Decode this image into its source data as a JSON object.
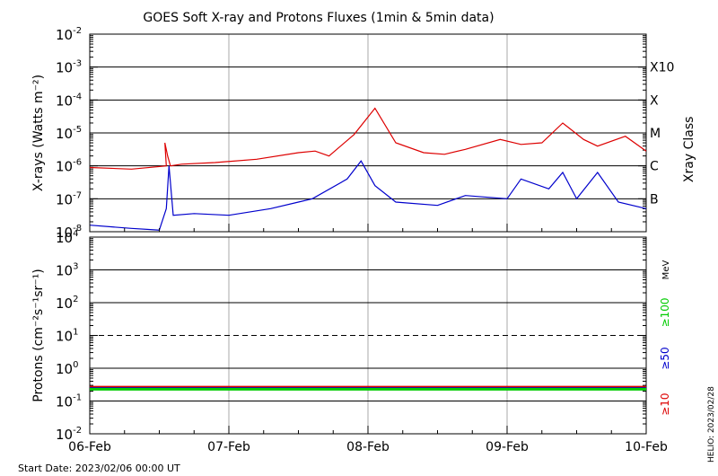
{
  "title": "GOES Soft X-ray and Protons Fluxes   (1min & 5min data)",
  "start_date": "Start Date: 2023/02/06 00:00 UT",
  "helio_stamp": "HELIO: 2023/02/28",
  "chart_data": [
    {
      "type": "line",
      "panel": "xray",
      "ylabel": "X-rays (Watts m⁻²)",
      "y_scale": "log",
      "ylim_exponents": [
        -8,
        -2
      ],
      "y_tick_labels": [
        {
          "base": "10",
          "exp": "-8"
        },
        {
          "base": "10",
          "exp": "-7"
        },
        {
          "base": "10",
          "exp": "-6"
        },
        {
          "base": "10",
          "exp": "-5"
        },
        {
          "base": "10",
          "exp": "-4"
        },
        {
          "base": "10",
          "exp": "-3"
        },
        {
          "base": "10",
          "exp": "-2"
        }
      ],
      "class_axis_label": "Xray Class",
      "class_labels": [
        {
          "label": "B",
          "exp": -7
        },
        {
          "label": "C",
          "exp": -6
        },
        {
          "label": "M",
          "exp": -5
        },
        {
          "label": "X",
          "exp": -4
        },
        {
          "label": "X10",
          "exp": -3
        }
      ],
      "series": [
        {
          "color": "#dd0000",
          "x": [
            0,
            0.3,
            0.55,
            0.54,
            0.56,
            0.58,
            0.66,
            0.9,
            1.2,
            1.5,
            1.62,
            1.72,
            1.9,
            2.05,
            2.2,
            2.4,
            2.55,
            2.7,
            2.95,
            3.1,
            3.25,
            3.4,
            3.55,
            3.65,
            3.85,
            4.0
          ],
          "y_exp": [
            -6.05,
            -6.1,
            -6.0,
            -5.3,
            -5.7,
            -6.0,
            -5.95,
            -5.9,
            -5.8,
            -5.6,
            -5.55,
            -5.7,
            -5.05,
            -4.25,
            -5.3,
            -5.6,
            -5.65,
            -5.5,
            -5.2,
            -5.35,
            -5.3,
            -4.7,
            -5.2,
            -5.4,
            -5.1,
            -5.55
          ]
        },
        {
          "color": "#0000cc",
          "x": [
            0,
            0.3,
            0.5,
            0.55,
            0.57,
            0.6,
            0.75,
            1.0,
            1.3,
            1.5,
            1.6,
            1.85,
            1.95,
            2.05,
            2.2,
            2.5,
            2.7,
            3.0,
            3.1,
            3.3,
            3.4,
            3.5,
            3.65,
            3.8,
            4.0
          ],
          "y_exp": [
            -7.8,
            -7.9,
            -7.95,
            -7.3,
            -6.0,
            -7.5,
            -7.45,
            -7.5,
            -7.3,
            -7.1,
            -7.0,
            -6.4,
            -5.85,
            -6.6,
            -7.1,
            -7.2,
            -6.9,
            -7.0,
            -6.4,
            -6.7,
            -6.2,
            -7.0,
            -6.2,
            -7.1,
            -7.3
          ]
        }
      ]
    },
    {
      "type": "line",
      "panel": "protons",
      "ylabel": "Protons (cm⁻²s⁻¹sr⁻¹)",
      "y_scale": "log",
      "ylim_exponents": [
        -2,
        4
      ],
      "y_tick_labels": [
        {
          "base": "10",
          "exp": "-2"
        },
        {
          "base": "10",
          "exp": "-1"
        },
        {
          "base": "10",
          "exp": "0"
        },
        {
          "base": "10",
          "exp": "1"
        },
        {
          "base": "10",
          "exp": "2"
        },
        {
          "base": "10",
          "exp": "3"
        },
        {
          "base": "10",
          "exp": "4"
        }
      ],
      "unit_label": "MeV",
      "energy_labels": [
        {
          "label": "≥100",
          "color": "#00cc00"
        },
        {
          "label": "≥50",
          "color": "#0000cc"
        },
        {
          "label": "≥10",
          "color": "#dd0000"
        }
      ],
      "dashed_level_exp": 1,
      "series": [
        {
          "name": "≥10",
          "color": "#dd0000",
          "level_exp": -0.58
        },
        {
          "name": "≥50",
          "color": "#0000cc",
          "level_exp": -0.62
        },
        {
          "name": "≥100",
          "color": "#00cc00",
          "level_exp": -0.64
        }
      ]
    }
  ],
  "x_axis": {
    "x_range_days": [
      0,
      4
    ],
    "tick_labels": [
      "06-Feb",
      "07-Feb",
      "08-Feb",
      "09-Feb",
      "10-Feb"
    ]
  }
}
